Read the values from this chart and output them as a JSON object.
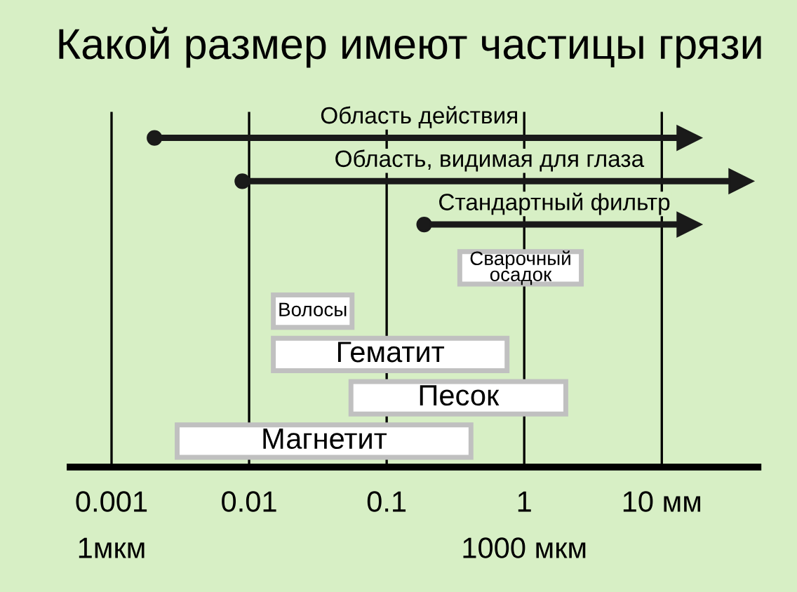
{
  "chart_data": {
    "type": "bar",
    "orientation": "horizontal",
    "title": "Какой размер имеют частицы грязи",
    "categories": [
      "Область действия",
      "Область, видимая для глаза",
      "Стандартный фильтр",
      "Сварочный\nосадок",
      "Волосы",
      "Гематит",
      "Песок",
      "Магнетит"
    ],
    "series": [
      {
        "color": "#1a1a1a",
        "line_style": "solid",
        "marker": "circle",
        "base": [
          0.0023,
          0.01,
          0.21,
          null,
          null,
          null,
          null,
          null
        ],
        "values": [
          13,
          31,
          12.8,
          null,
          null,
          null,
          null,
          null
        ]
      },
      {
        "color": "#ffffff",
        "base": [
          null,
          null,
          null,
          0.34,
          0.015,
          0.015,
          0.055,
          0.003
        ],
        "values": [
          null,
          null,
          null,
          2.26,
          0.041,
          0.735,
          1.95,
          0.407
        ]
      }
    ],
    "log": "x",
    "xlim": [
      0.0005,
      50
    ],
    "xticks": [
      {
        "value": 0.001,
        "label": "0.001\n1мкм"
      },
      0.01,
      0.1,
      {
        "value": 1,
        "label": "1\n1000 мкм"
      },
      {
        "value": 10,
        "label": "10 мм"
      }
    ],
    "grid": "x",
    "tick_labels": "x",
    "legend": false
  }
}
